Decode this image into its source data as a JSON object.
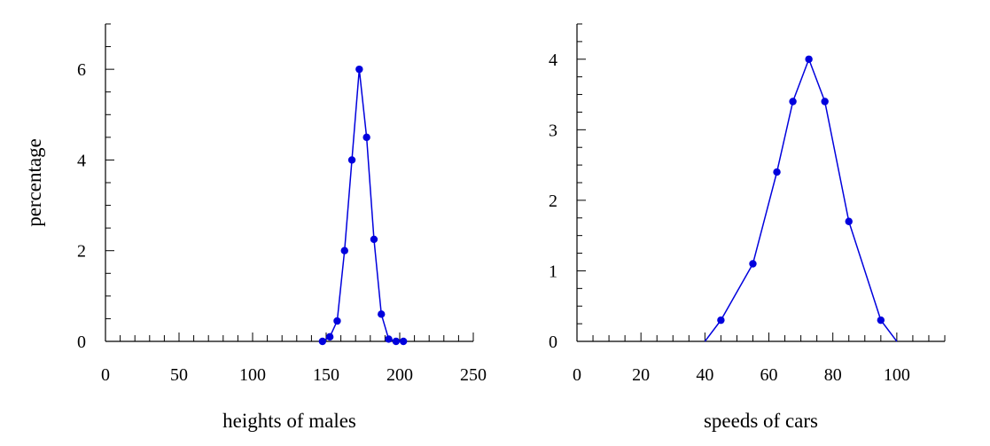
{
  "chart_data": [
    {
      "type": "line",
      "title": "",
      "xlabel": "heights of males",
      "ylabel": "percentage",
      "xlim": [
        0,
        250
      ],
      "ylim": [
        0,
        7
      ],
      "x_ticks": [
        0,
        50,
        100,
        150,
        200,
        250
      ],
      "y_ticks": [
        0,
        2,
        4,
        6
      ],
      "x_minor_step": 10,
      "y_minor_step": 0.5,
      "grid": false,
      "color": "#0000dd",
      "series": [
        {
          "x": [
            147.5,
            152.5,
            157.5,
            162.5,
            167.5,
            172.5,
            177.5,
            182.5,
            187.5,
            192.5,
            197.5,
            202.5
          ],
          "y": [
            0.0,
            0.1,
            0.45,
            2.0,
            4.0,
            6.0,
            4.5,
            2.25,
            0.6,
            0.05,
            0.0,
            0.0
          ]
        }
      ]
    },
    {
      "type": "line",
      "title": "",
      "xlabel": "speeds of cars",
      "ylabel": "",
      "xlim": [
        0,
        115
      ],
      "ylim": [
        0,
        4.5
      ],
      "x_ticks": [
        0,
        20,
        40,
        60,
        80,
        100
      ],
      "y_ticks": [
        0,
        1,
        2,
        3,
        4
      ],
      "x_minor_step": 5,
      "y_minor_step": 0.25,
      "grid": false,
      "color": "#0000dd",
      "series": [
        {
          "x": [
            40,
            45,
            55,
            62.5,
            67.5,
            72.5,
            77.5,
            85,
            95,
            100
          ],
          "y": [
            0,
            0.3,
            1.1,
            2.4,
            3.4,
            4.0,
            3.4,
            1.7,
            0.3,
            0
          ],
          "marker_from": 1,
          "marker_to": 8
        }
      ]
    }
  ]
}
